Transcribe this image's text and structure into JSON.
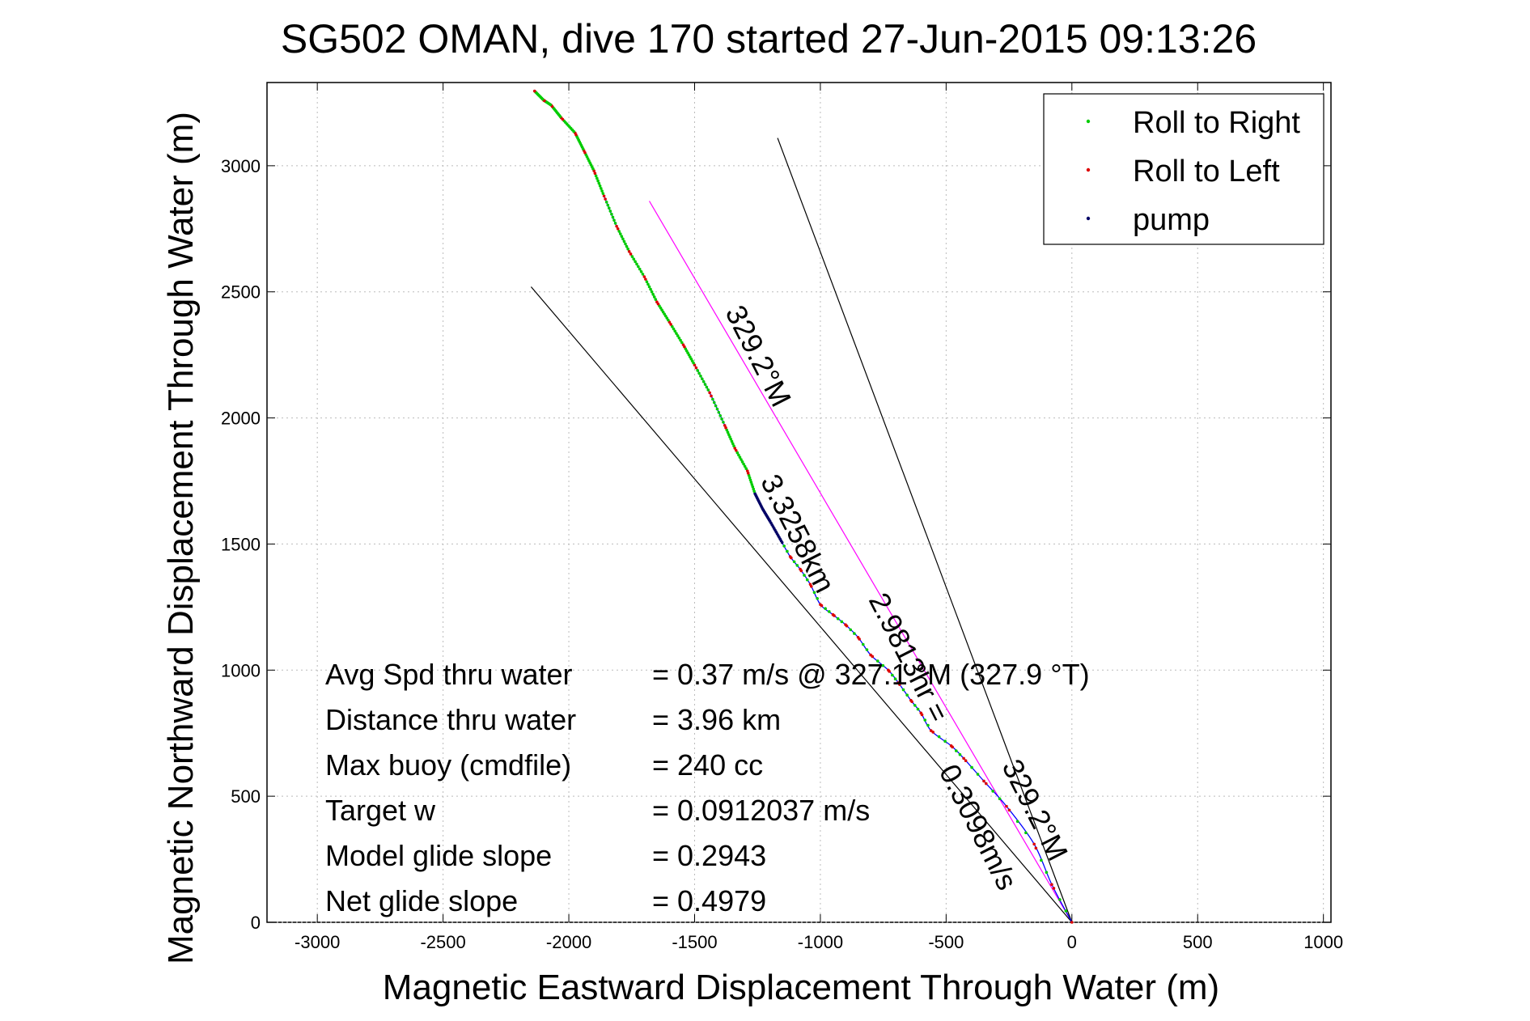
{
  "chart_data": {
    "type": "line",
    "title": "SG502 OMAN, dive 170 started 27-Jun-2015 09:13:26",
    "xlabel": "Magnetic Eastward Displacement Through Water (m)",
    "ylabel": "Magnetic Northward Displacement Through Water (m)",
    "xlim": [
      -3200,
      1030
    ],
    "ylim": [
      0,
      3330
    ],
    "x_ticks": [
      -3000,
      -2500,
      -2000,
      -1500,
      -1000,
      -500,
      0,
      500,
      1000
    ],
    "y_ticks": [
      0,
      500,
      1000,
      1500,
      2000,
      2500,
      3000
    ],
    "x_tick_labels": [
      "-3000",
      "-2500",
      "-2000",
      "-1500",
      "-1000",
      "-500",
      "0",
      "500",
      "1000"
    ],
    "y_tick_labels": [
      "0",
      "500",
      "1000",
      "1500",
      "2000",
      "2500",
      "3000"
    ],
    "grid": true,
    "legend": {
      "placement": "top-right",
      "entries": [
        {
          "label": "Roll to Right",
          "color": "#00cc00"
        },
        {
          "label": "Roll to Left",
          "color": "#dd0000"
        },
        {
          "label": "pump",
          "color": "#000066"
        }
      ]
    },
    "track_color": "#0000ff",
    "track": {
      "x": [
        0,
        -80,
        -150,
        -260,
        -350,
        -430,
        -480,
        -560,
        -600,
        -640,
        -690,
        -730,
        -800,
        -850,
        -900,
        -950,
        -1000,
        -1040,
        -1080,
        -1120,
        -1160,
        -1200,
        -1230,
        -1260,
        -1290,
        -1340,
        -1380,
        -1440,
        -1500,
        -1545,
        -1600,
        -1650,
        -1700,
        -1760,
        -1810,
        -1860,
        -1900,
        -1940,
        -1975,
        -2030,
        -2070,
        -2100,
        -2140
      ],
      "y": [
        0,
        150,
        310,
        460,
        560,
        650,
        700,
        760,
        830,
        880,
        950,
        1000,
        1060,
        1130,
        1180,
        1220,
        1260,
        1340,
        1400,
        1450,
        1520,
        1590,
        1640,
        1700,
        1790,
        1880,
        1970,
        2100,
        2210,
        2290,
        2380,
        2460,
        2560,
        2660,
        2760,
        2880,
        2980,
        3060,
        3130,
        3190,
        3240,
        3260,
        3300
      ]
    },
    "segments": {
      "pump": [
        [
          1500,
          1700
        ]
      ]
    },
    "reference_lines": [
      {
        "name": "avg_heading_line",
        "color": "#ff00ff",
        "x": [
          0,
          -1680
        ],
        "y": [
          0,
          2860
        ]
      },
      {
        "name": "bound_left",
        "color": "#000000",
        "x": [
          0,
          -2150
        ],
        "y": [
          0,
          2520
        ]
      },
      {
        "name": "bound_right",
        "color": "#000000",
        "x": [
          0,
          -1170
        ],
        "y": [
          0,
          3110
        ]
      }
    ],
    "annotations": [
      {
        "text": "329.2°M",
        "anchor_x": -1380,
        "anchor_y": 2420,
        "angle_deg": 63
      },
      {
        "text": "3.3258km",
        "anchor_x": -1240,
        "anchor_y": 1750,
        "angle_deg": 63
      },
      {
        "text": "2.9813hr = ",
        "anchor_x": -810,
        "anchor_y": 1280,
        "angle_deg": 63
      },
      {
        "text": "0.3098m/s",
        "anchor_x": -530,
        "anchor_y": 600,
        "angle_deg": 63
      },
      {
        "text": "329.2°M",
        "anchor_x": -280,
        "anchor_y": 620,
        "angle_deg": 63
      }
    ]
  },
  "stats": [
    {
      "label": "Avg Spd thru water",
      "value": "=  0.37 m/s @  327.1 °M (327.9 °T)"
    },
    {
      "label": "Distance thru water",
      "value": "=  3.96 km"
    },
    {
      "label": "Max buoy (cmdfile)",
      "value": "= 240 cc"
    },
    {
      "label": "Target w",
      "value": "= 0.0912037 m/s"
    },
    {
      "label": "Model glide slope",
      "value": "= 0.2943"
    },
    {
      "label": "Net glide slope",
      "value": "= 0.4979"
    }
  ]
}
